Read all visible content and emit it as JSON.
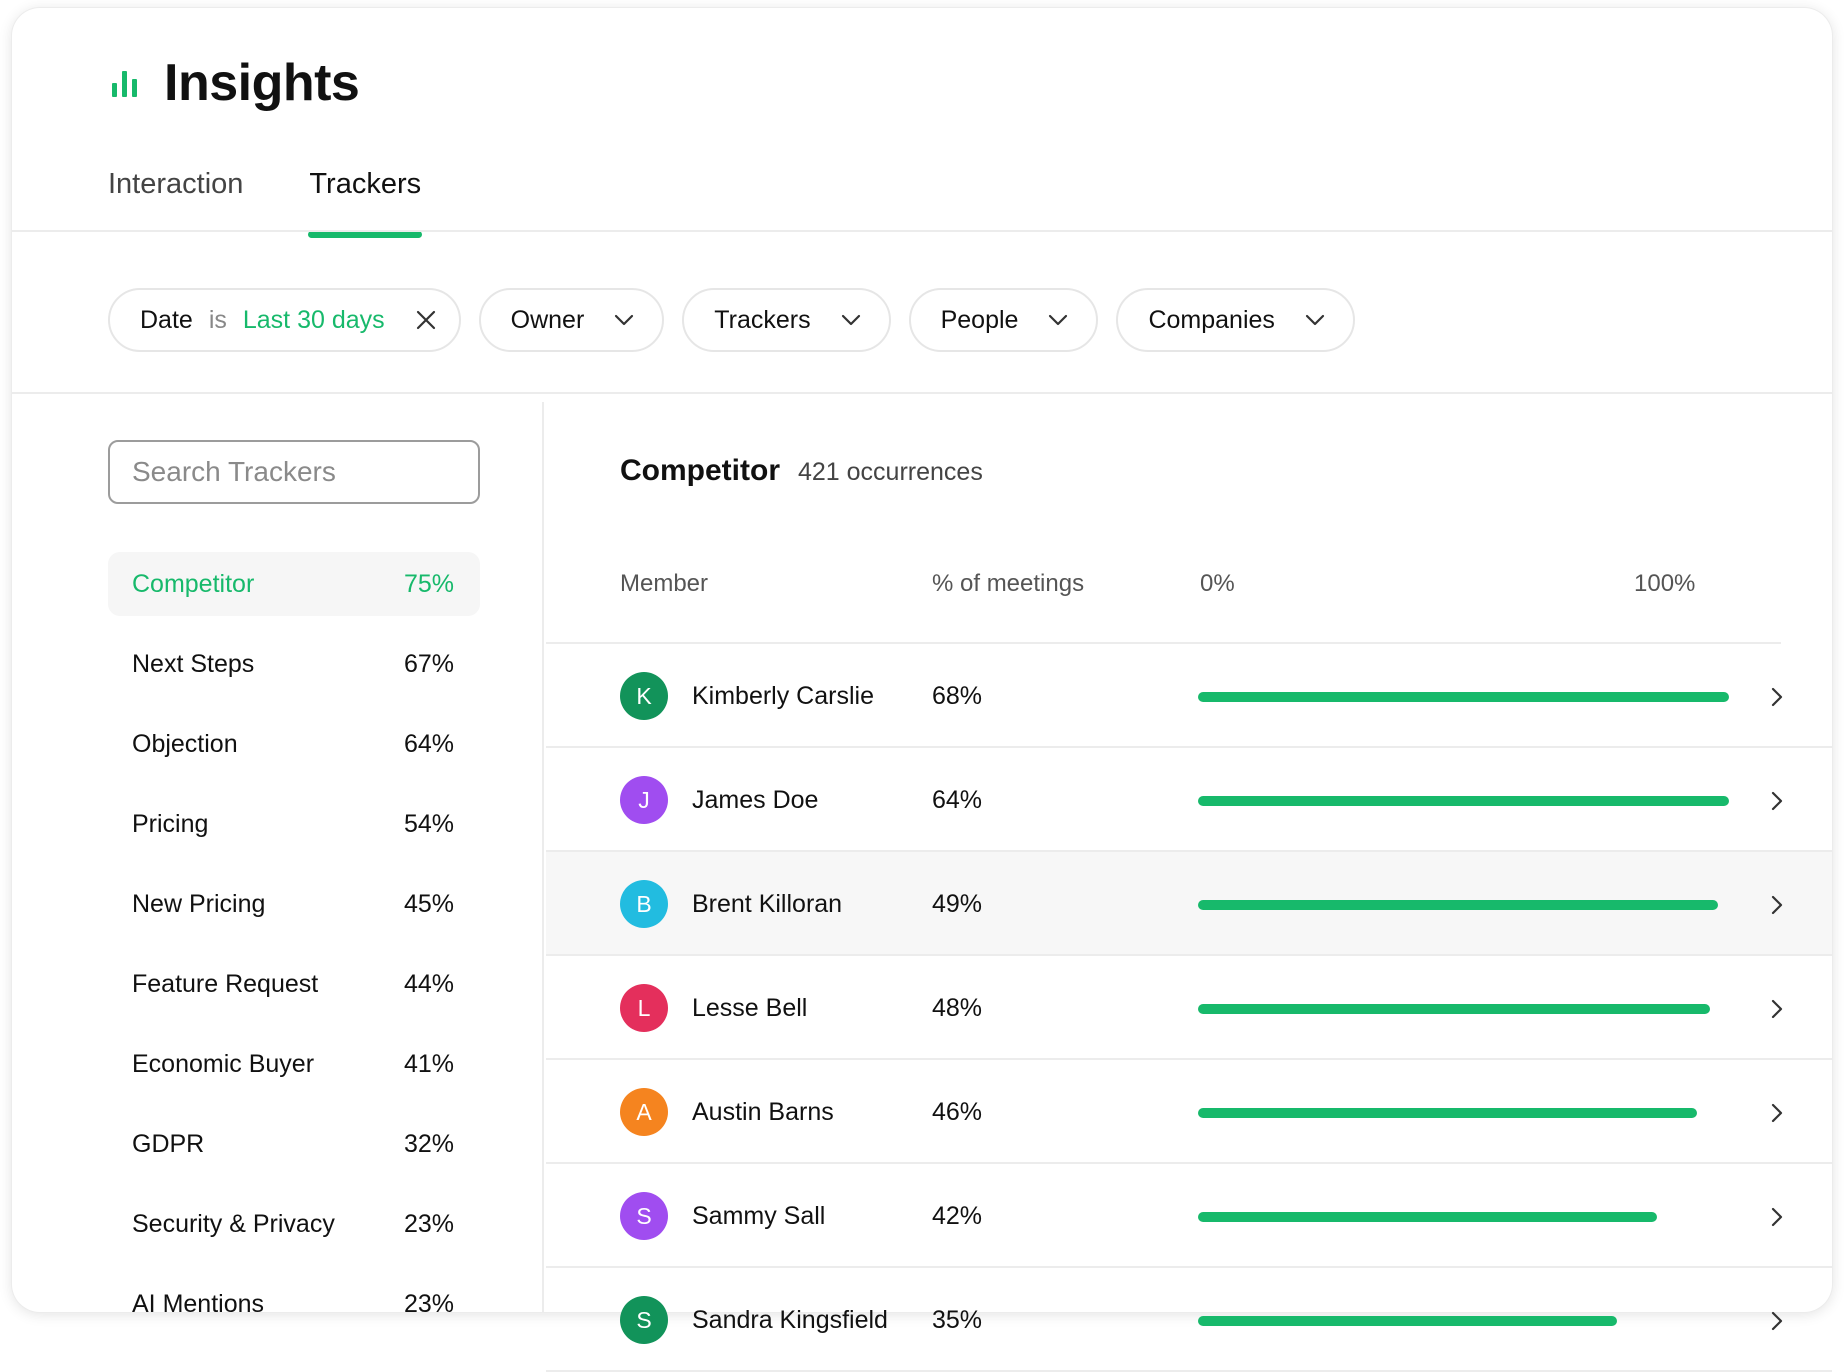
{
  "header": {
    "title": "Insights",
    "title_icon": "bar-chart-icon"
  },
  "tabs": [
    {
      "label": "Interaction",
      "active": false
    },
    {
      "label": "Trackers",
      "active": true
    }
  ],
  "filters": {
    "date": {
      "label": "Date",
      "operator": "is",
      "value": "Last 30 days"
    },
    "owner": "Owner",
    "trackers": "Trackers",
    "people": "People",
    "companies": "Companies"
  },
  "sidebar": {
    "search_placeholder": "Search Trackers",
    "trackers": [
      {
        "name": "Competitor",
        "pct": "75%",
        "active": true
      },
      {
        "name": "Next Steps",
        "pct": "67%"
      },
      {
        "name": "Objection",
        "pct": "64%"
      },
      {
        "name": "Pricing",
        "pct": "54%"
      },
      {
        "name": "New Pricing",
        "pct": "45%"
      },
      {
        "name": "Feature Request",
        "pct": "44%"
      },
      {
        "name": "Economic Buyer",
        "pct": "41%"
      },
      {
        "name": "GDPR",
        "pct": "32%"
      },
      {
        "name": "Security & Privacy",
        "pct": "23%"
      },
      {
        "name": "AI Mentions",
        "pct": "23%"
      }
    ]
  },
  "main": {
    "tracker_name": "Competitor",
    "occurrences": "421 occurrences",
    "columns": {
      "member": "Member",
      "pct": "% of meetings",
      "scale_min": "0%",
      "scale_max": "100%"
    },
    "members": [
      {
        "initial": "K",
        "name": "Kimberly Carslie",
        "pct": "68%",
        "bar_fraction": 1.0,
        "color": "#12935a"
      },
      {
        "initial": "J",
        "name": "James Doe",
        "pct": "64%",
        "bar_fraction": 1.0,
        "color": "#a04df0"
      },
      {
        "initial": "B",
        "name": "Brent Killoran",
        "pct": "49%",
        "bar_fraction": 0.98,
        "color": "#22bce0",
        "highlighted": true
      },
      {
        "initial": "L",
        "name": "Lesse Bell",
        "pct": "48%",
        "bar_fraction": 0.965,
        "color": "#e42f5c"
      },
      {
        "initial": "A",
        "name": "Austin Barns",
        "pct": "46%",
        "bar_fraction": 0.94,
        "color": "#f5841f"
      },
      {
        "initial": "S",
        "name": "Sammy Sall",
        "pct": "42%",
        "bar_fraction": 0.865,
        "color": "#a04df0"
      },
      {
        "initial": "S",
        "name": "Sandra Kingsfield",
        "pct": "35%",
        "bar_fraction": 0.79,
        "color": "#12935a"
      }
    ]
  },
  "colors": {
    "accent": "#17b96b",
    "divider": "#ececec"
  }
}
